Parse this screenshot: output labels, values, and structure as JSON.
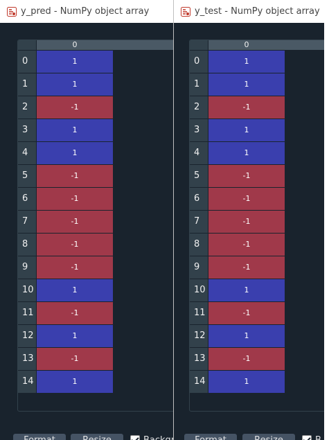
{
  "colors": {
    "positive": "#3a3fae",
    "negative": "#a0394a"
  },
  "icons": {
    "app": "spyder-icon",
    "checkbox": "checkmark-icon"
  },
  "windows": [
    {
      "title": "y_pred - NumPy object array",
      "column_header": "0",
      "rows": [
        {
          "index": "0",
          "value": "1"
        },
        {
          "index": "1",
          "value": "1"
        },
        {
          "index": "2",
          "value": "-1"
        },
        {
          "index": "3",
          "value": "1"
        },
        {
          "index": "4",
          "value": "1"
        },
        {
          "index": "5",
          "value": "-1"
        },
        {
          "index": "6",
          "value": "-1"
        },
        {
          "index": "7",
          "value": "-1"
        },
        {
          "index": "8",
          "value": "-1"
        },
        {
          "index": "9",
          "value": "-1"
        },
        {
          "index": "10",
          "value": "1"
        },
        {
          "index": "11",
          "value": "-1"
        },
        {
          "index": "12",
          "value": "1"
        },
        {
          "index": "13",
          "value": "-1"
        },
        {
          "index": "14",
          "value": "1"
        }
      ],
      "buttons": {
        "format": "Format",
        "resize": "Resize"
      },
      "background_checkbox": {
        "label": "Backgr",
        "checked": true
      }
    },
    {
      "title": "y_test - NumPy object array",
      "column_header": "0",
      "rows": [
        {
          "index": "0",
          "value": "1"
        },
        {
          "index": "1",
          "value": "1"
        },
        {
          "index": "2",
          "value": "-1"
        },
        {
          "index": "3",
          "value": "1"
        },
        {
          "index": "4",
          "value": "1"
        },
        {
          "index": "5",
          "value": "-1"
        },
        {
          "index": "6",
          "value": "-1"
        },
        {
          "index": "7",
          "value": "-1"
        },
        {
          "index": "8",
          "value": "-1"
        },
        {
          "index": "9",
          "value": "-1"
        },
        {
          "index": "10",
          "value": "1"
        },
        {
          "index": "11",
          "value": "-1"
        },
        {
          "index": "12",
          "value": "1"
        },
        {
          "index": "13",
          "value": "-1"
        },
        {
          "index": "14",
          "value": "1"
        }
      ],
      "buttons": {
        "format": "Format",
        "resize": "Resize"
      },
      "background_checkbox": {
        "label": "B",
        "checked": true
      }
    }
  ]
}
